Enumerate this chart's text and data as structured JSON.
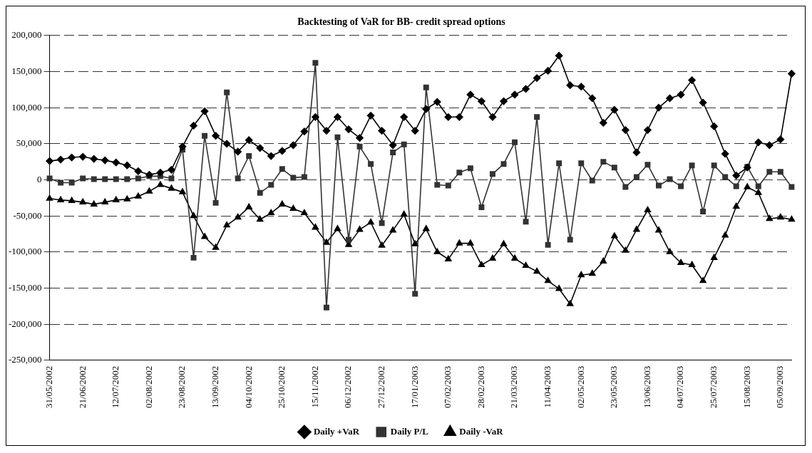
{
  "chart_data": {
    "type": "line",
    "title": "Backtesting of VaR for BB- credit spread options",
    "categories": [
      "31/05/2002",
      null,
      null,
      "21/06/2002",
      null,
      null,
      "12/07/2002",
      null,
      null,
      "02/08/2002",
      null,
      null,
      "23/08/2002",
      null,
      null,
      "13/09/2002",
      null,
      null,
      "04/10/2002",
      null,
      null,
      "25/10/2002",
      null,
      null,
      "15/11/2002",
      null,
      null,
      "06/12/2002",
      null,
      null,
      "27/12/2002",
      null,
      null,
      "17/01/2003",
      null,
      null,
      "07/02/2003",
      null,
      null,
      "28/02/2003",
      null,
      null,
      "21/03/2003",
      null,
      null,
      "11/04/2003",
      null,
      null,
      "02/05/2003",
      null,
      null,
      "23/05/2003",
      null,
      null,
      "13/06/2003",
      null,
      null,
      "04/07/2003",
      null,
      null,
      "25/07/2003",
      null,
      null,
      "15/08/2003",
      null,
      null,
      "05/09/2003",
      null
    ],
    "series": [
      {
        "name": "Daily +VaR",
        "color": "#000000",
        "marker": "diamond",
        "values": [
          26000,
          28000,
          31000,
          32000,
          29000,
          27000,
          24000,
          20000,
          12000,
          7000,
          10000,
          14000,
          46000,
          75000,
          95000,
          61000,
          50000,
          39000,
          55000,
          44000,
          33000,
          40000,
          48000,
          67000,
          87000,
          68000,
          87000,
          70000,
          58000,
          89000,
          68000,
          48000,
          87000,
          68000,
          98000,
          108000,
          87000,
          87000,
          118000,
          109000,
          87000,
          109000,
          118000,
          126000,
          141000,
          151000,
          172000,
          131000,
          129000,
          113000,
          79000,
          97000,
          69000,
          38000,
          69000,
          100000,
          113000,
          118000,
          138000,
          107000,
          74000,
          36000,
          6000,
          17000,
          52000,
          48000,
          56000,
          147000
        ]
      },
      {
        "name": "Daily P/L",
        "color": "#333333",
        "marker": "square",
        "values": [
          2000,
          -4000,
          -4000,
          2000,
          1000,
          1000,
          1000,
          1000,
          2000,
          5000,
          5000,
          2000,
          42000,
          -108000,
          61000,
          -32000,
          121000,
          2000,
          33000,
          -18000,
          -7000,
          15000,
          3000,
          4000,
          162000,
          -177000,
          59000,
          -83000,
          46000,
          22000,
          -60000,
          38000,
          49000,
          -158000,
          128000,
          -7000,
          -8000,
          10000,
          16000,
          -38000,
          8000,
          22000,
          52000,
          -58000,
          87000,
          -90000,
          23000,
          -83000,
          23000,
          -1000,
          25000,
          17000,
          -10000,
          4000,
          21000,
          -8000,
          1000,
          -9000,
          20000,
          -44000,
          20000,
          4000,
          -9000,
          18000,
          -9000,
          11000,
          11000,
          -10000
        ]
      },
      {
        "name": "Daily -VaR",
        "color": "#000000",
        "marker": "triangle",
        "values": [
          -26000,
          -28000,
          -29000,
          -31000,
          -34000,
          -31000,
          -28000,
          -27000,
          -23000,
          -16000,
          -7000,
          -12000,
          -17000,
          -50000,
          -79000,
          -94000,
          -63000,
          -52000,
          -38000,
          -55000,
          -46000,
          -34000,
          -40000,
          -46000,
          -66000,
          -87000,
          -68000,
          -90000,
          -69000,
          -59000,
          -91000,
          -70000,
          -48000,
          -89000,
          -68000,
          -100000,
          -110000,
          -88000,
          -88000,
          -118000,
          -109000,
          -89000,
          -109000,
          -119000,
          -127000,
          -140000,
          -151000,
          -172000,
          -132000,
          -130000,
          -113000,
          -78000,
          -98000,
          -69000,
          -42000,
          -70000,
          -100000,
          -115000,
          -118000,
          -140000,
          -108000,
          -77000,
          -37000,
          -10000,
          -18000,
          -54000,
          -52000,
          -55000
        ]
      }
    ],
    "ylim": [
      -250000,
      200000
    ],
    "yticks": [
      {
        "value": -250000,
        "label": "-250,000"
      },
      {
        "value": -200000,
        "label": "-200,000"
      },
      {
        "value": -150000,
        "label": "-150,000"
      },
      {
        "value": -100000,
        "label": "-100,000"
      },
      {
        "value": -50000,
        "label": "-50,000"
      },
      {
        "value": 0,
        "label": "0"
      },
      {
        "value": 50000,
        "label": "50,000"
      },
      {
        "value": 100000,
        "label": "100,000"
      },
      {
        "value": 150000,
        "label": "150,000"
      },
      {
        "value": 200000,
        "label": "200,000"
      }
    ],
    "grid": "y",
    "legend": "bottom",
    "line_style": "solid"
  }
}
